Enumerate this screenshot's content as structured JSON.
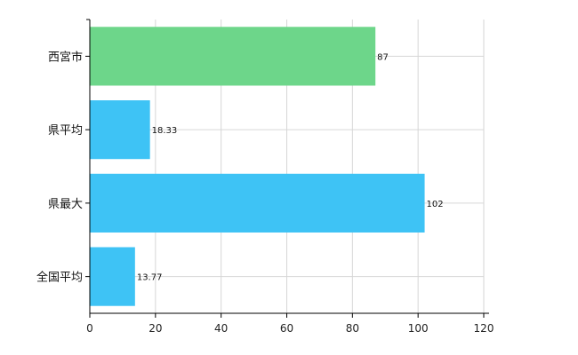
{
  "chart_data": {
    "type": "bar",
    "orientation": "horizontal",
    "categories": [
      "西宮市",
      "県平均",
      "県最大",
      "全国平均"
    ],
    "values": [
      87,
      18.33,
      102,
      13.77
    ],
    "data_labels": [
      "87",
      "18.33",
      "102",
      "13.77"
    ],
    "bar_colors": [
      "#6dd68a",
      "#3ec3f5",
      "#3ec3f5",
      "#3ec3f5"
    ],
    "xlim": [
      0,
      120
    ],
    "xticks": [
      0,
      20,
      40,
      60,
      80,
      100,
      120
    ],
    "grid": true,
    "title": "",
    "xlabel": "",
    "ylabel": ""
  }
}
